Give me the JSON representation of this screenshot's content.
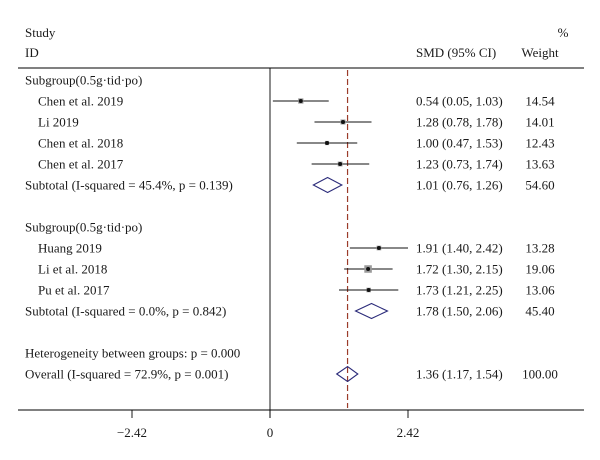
{
  "chart_data": {
    "type": "forest",
    "header": {
      "study_line1": "Study",
      "study_line2": "ID",
      "effect_col": "SMD (95% CI)",
      "weight_line1": "%",
      "weight_line2": "Weight"
    },
    "x_ticks": [
      {
        "value": -2.42,
        "label": "−2.42"
      },
      {
        "value": 0,
        "label": "0"
      },
      {
        "value": 2.42,
        "label": "2.42"
      }
    ],
    "null_value": 0,
    "overall_reference": 1.36,
    "rows": [
      {
        "kind": "heading",
        "label": "Subgroup(0.5g·tid·po)"
      },
      {
        "kind": "study",
        "label": "Chen et al. 2019",
        "est": 0.54,
        "lo": 0.05,
        "hi": 1.03,
        "ci_text": "0.54 (0.05, 1.03)",
        "weight": "14.54"
      },
      {
        "kind": "study",
        "label": "Li 2019",
        "est": 1.28,
        "lo": 0.78,
        "hi": 1.78,
        "ci_text": "1.28 (0.78, 1.78)",
        "weight": "14.01"
      },
      {
        "kind": "study",
        "label": "Chen et al. 2018",
        "est": 1.0,
        "lo": 0.47,
        "hi": 1.53,
        "ci_text": "1.00 (0.47, 1.53)",
        "weight": "12.43"
      },
      {
        "kind": "study",
        "label": "Chen et al. 2017",
        "est": 1.23,
        "lo": 0.73,
        "hi": 1.74,
        "ci_text": "1.23 (0.73, 1.74)",
        "weight": "13.63"
      },
      {
        "kind": "subtotal",
        "label": "Subtotal (I-squared = 45.4%, p = 0.139)",
        "est": 1.01,
        "lo": 0.76,
        "hi": 1.26,
        "ci_text": "1.01 (0.76, 1.26)",
        "weight": "54.60"
      },
      {
        "kind": "blank"
      },
      {
        "kind": "heading",
        "label": "Subgroup(0.5g·tid·po)"
      },
      {
        "kind": "study",
        "label": "Huang 2019",
        "est": 1.91,
        "lo": 1.4,
        "hi": 2.42,
        "ci_text": "1.91 (1.40, 2.42)",
        "weight": "13.28"
      },
      {
        "kind": "study",
        "label": "Li et al. 2018",
        "est": 1.72,
        "lo": 1.3,
        "hi": 2.15,
        "ci_text": "1.72 (1.30, 2.15)",
        "weight": "19.06"
      },
      {
        "kind": "study",
        "label": "Pu et al. 2017",
        "est": 1.73,
        "lo": 1.21,
        "hi": 2.25,
        "ci_text": "1.73 (1.21, 2.25)",
        "weight": "13.06"
      },
      {
        "kind": "subtotal",
        "label": "Subtotal (I-squared = 0.0%, p = 0.842)",
        "est": 1.78,
        "lo": 1.5,
        "hi": 2.06,
        "ci_text": "1.78 (1.50, 2.06)",
        "weight": "45.40"
      },
      {
        "kind": "blank"
      },
      {
        "kind": "heading",
        "label": "Heterogeneity between groups: p = 0.000"
      },
      {
        "kind": "overall",
        "label": "Overall (I-squared = 72.9%, p = 0.001)",
        "est": 1.36,
        "lo": 1.17,
        "hi": 1.54,
        "ci_text": "1.36 (1.17, 1.54)",
        "weight": "100.00"
      }
    ],
    "colors": {
      "text": "#1a1a1a",
      "axis": "#000000",
      "diamond": "#2b2b7a",
      "reference_line": "#9b3b2a",
      "marker": "#111111"
    }
  }
}
